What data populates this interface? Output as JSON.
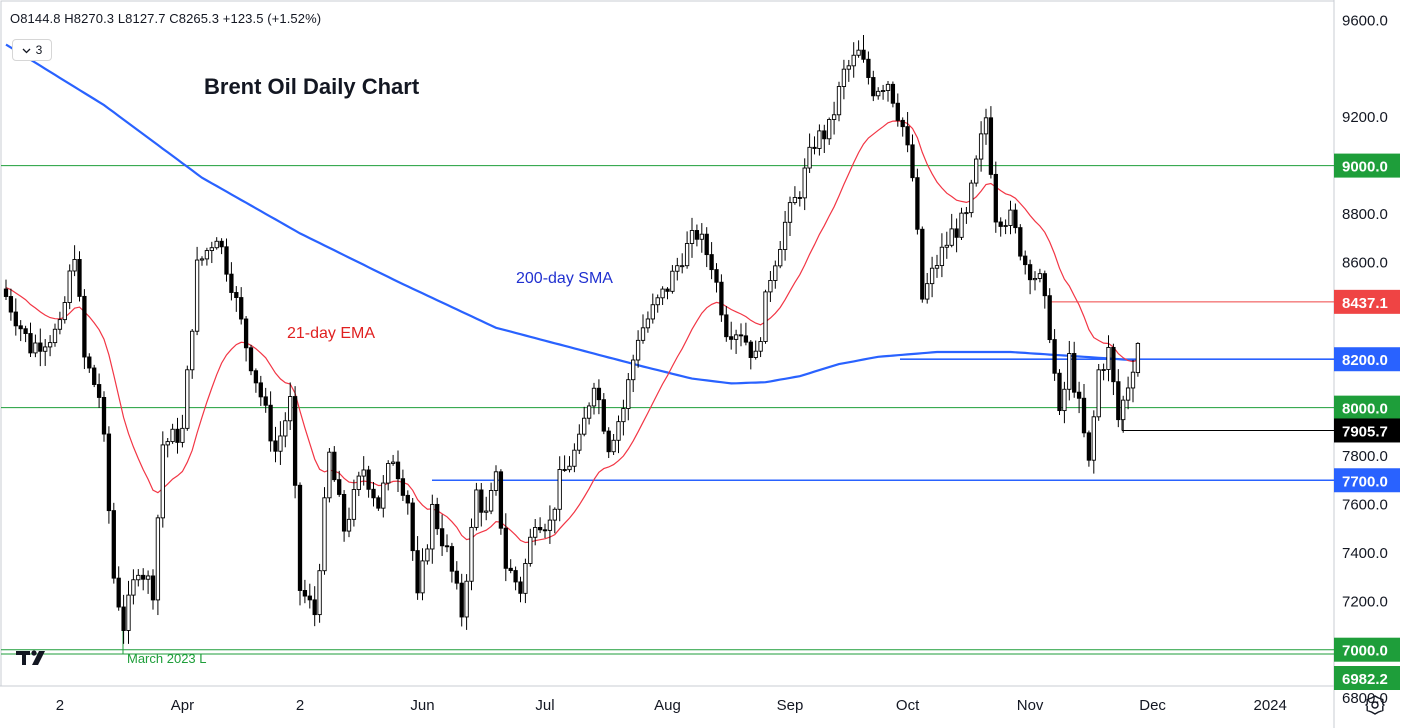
{
  "legend": {
    "ohlc_text": "O8144.8 H8270.3 L8127.7 C8265.3 +123.5 (+1.52%)",
    "collapse_count": "3"
  },
  "icons": {
    "collapse": "chevron-down-icon",
    "logo": "tradingview-logo-icon",
    "settings": "gear-icon"
  },
  "chart_data": {
    "type": "candlestick",
    "title": "Brent Oil Daily Chart",
    "ylim": [
      6850,
      9680
    ],
    "y_ticks": [
      "9600.0",
      "9200.0",
      "8800.0",
      "8600.0",
      "7800.0",
      "7600.0",
      "7400.0",
      "7200.0",
      "7000.0",
      "6800.0"
    ],
    "x_ticks": [
      "2",
      "Apr",
      "2",
      "Jun",
      "Jul",
      "Aug",
      "Sep",
      "Oct",
      "Nov",
      "Dec",
      "2024"
    ],
    "x_tick_index": [
      11,
      36,
      60,
      85,
      110,
      135,
      160,
      184,
      209,
      234,
      258
    ],
    "horizontal_levels": [
      {
        "value": 9000.0,
        "label": "9000.0",
        "color": "#1e9e3a"
      },
      {
        "value": 8437.1,
        "label": "8437.1",
        "color": "#ef4444"
      },
      {
        "value": 8200.0,
        "label": "8200.0",
        "color": "#2962ff"
      },
      {
        "value": 8000.0,
        "label": "8000.0",
        "color": "#1e9e3a"
      },
      {
        "value": 7905.7,
        "label": "7905.7",
        "color": "#000000"
      },
      {
        "value": 7700.0,
        "label": "7700.0",
        "color": "#2962ff"
      },
      {
        "value": 7000.0,
        "label": "7000.0",
        "color": "#1e9e3a"
      },
      {
        "value": 6982.2,
        "label": "6982.2",
        "color": "#1e9e3a"
      }
    ],
    "annotations": [
      {
        "text": "200-day SMA",
        "color": "#2030d0"
      },
      {
        "text": "21-day EMA",
        "color": "#e02020"
      },
      {
        "text": "March 2023 L",
        "color": "#1e9e3a"
      }
    ],
    "anchors": [
      [
        0,
        8460
      ],
      [
        5,
        8250
      ],
      [
        11,
        8320
      ],
      [
        14,
        8650
      ],
      [
        16,
        8200
      ],
      [
        19,
        8050
      ],
      [
        20,
        7850
      ],
      [
        22,
        7300
      ],
      [
        24,
        7100
      ],
      [
        27,
        7350
      ],
      [
        30,
        7250
      ],
      [
        32,
        7850
      ],
      [
        36,
        7900
      ],
      [
        39,
        8580
      ],
      [
        43,
        8720
      ],
      [
        46,
        8520
      ],
      [
        49,
        8260
      ],
      [
        52,
        8050
      ],
      [
        55,
        7820
      ],
      [
        58,
        8020
      ],
      [
        60,
        7250
      ],
      [
        63,
        7150
      ],
      [
        66,
        7800
      ],
      [
        69,
        7500
      ],
      [
        73,
        7750
      ],
      [
        76,
        7600
      ],
      [
        79,
        7800
      ],
      [
        82,
        7620
      ],
      [
        84,
        7200
      ],
      [
        87,
        7580
      ],
      [
        90,
        7400
      ],
      [
        93,
        7150
      ],
      [
        96,
        7650
      ],
      [
        98,
        7550
      ],
      [
        100,
        7700
      ],
      [
        102,
        7350
      ],
      [
        105,
        7250
      ],
      [
        108,
        7550
      ],
      [
        111,
        7520
      ],
      [
        113,
        7700
      ],
      [
        117,
        7850
      ],
      [
        120,
        8120
      ],
      [
        123,
        7850
      ],
      [
        126,
        8000
      ],
      [
        129,
        8300
      ],
      [
        132,
        8400
      ],
      [
        135,
        8500
      ],
      [
        138,
        8630
      ],
      [
        141,
        8720
      ],
      [
        144,
        8600
      ],
      [
        147,
        8330
      ],
      [
        150,
        8320
      ],
      [
        153,
        8200
      ],
      [
        156,
        8550
      ],
      [
        159,
        8760
      ],
      [
        162,
        8900
      ],
      [
        165,
        9100
      ],
      [
        168,
        9150
      ],
      [
        171,
        9380
      ],
      [
        174,
        9460
      ],
      [
        177,
        9320
      ],
      [
        180,
        9350
      ],
      [
        183,
        9160
      ],
      [
        185,
        8950
      ],
      [
        187,
        8450
      ],
      [
        190,
        8600
      ],
      [
        193,
        8720
      ],
      [
        196,
        8780
      ],
      [
        198,
        9000
      ],
      [
        200,
        9200
      ],
      [
        202,
        8800
      ],
      [
        205,
        8780
      ],
      [
        208,
        8600
      ],
      [
        211,
        8520
      ],
      [
        213,
        8320
      ],
      [
        215,
        7950
      ],
      [
        217,
        8200
      ],
      [
        219,
        8000
      ],
      [
        221,
        7760
      ],
      [
        223,
        8150
      ],
      [
        225,
        8230
      ],
      [
        227,
        7950
      ],
      [
        229,
        8100
      ],
      [
        231,
        8265
      ]
    ],
    "sma200_anchors": [
      [
        0,
        9500
      ],
      [
        20,
        9250
      ],
      [
        40,
        8950
      ],
      [
        60,
        8720
      ],
      [
        80,
        8520
      ],
      [
        100,
        8330
      ],
      [
        115,
        8250
      ],
      [
        130,
        8170
      ],
      [
        140,
        8120
      ],
      [
        148,
        8100
      ],
      [
        155,
        8105
      ],
      [
        162,
        8130
      ],
      [
        170,
        8180
      ],
      [
        178,
        8210
      ],
      [
        190,
        8230
      ],
      [
        205,
        8230
      ],
      [
        220,
        8210
      ],
      [
        231,
        8195
      ]
    ],
    "ema_period": 21,
    "last_close": 8265.3
  }
}
